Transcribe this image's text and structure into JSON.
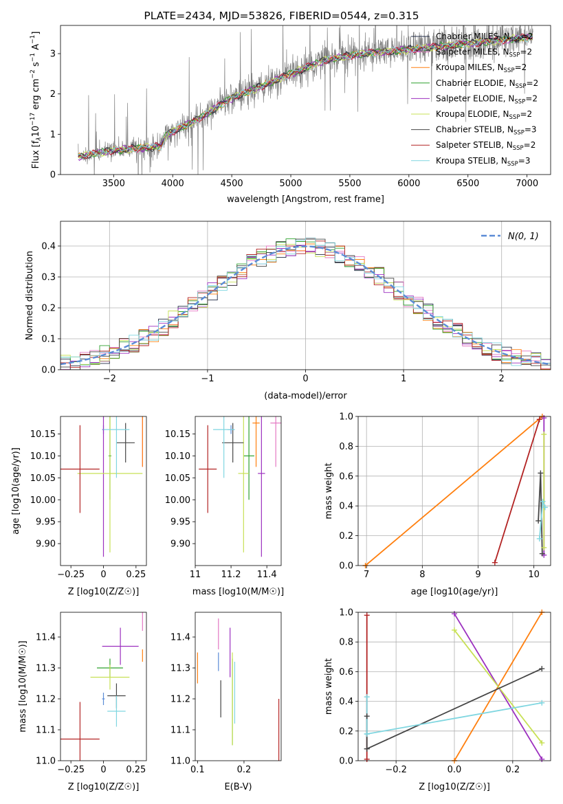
{
  "title": "PLATE=2434, MJD=53826, FIBERID=0544, z=0.315",
  "models": [
    {
      "name": "Chabrier MILES, N$_{SSP}$=2",
      "label": "Chabrier MILES, N",
      "sub": "SSP",
      "suffix": "=2",
      "color": "#1f2a44",
      "style": "#5577cc"
    },
    {
      "name": "Salpeter MILES",
      "label": "Salpeter MILES, N",
      "sub": "SSP",
      "suffix": "=2",
      "color": "#e377c2"
    },
    {
      "name": "Kroupa MILES",
      "label": "Kroupa MILES, N",
      "sub": "SSP",
      "suffix": "=2",
      "color": "#ff7f0e"
    },
    {
      "name": "Chabrier ELODIE",
      "label": "Chabrier ELODIE, N",
      "sub": "SSP",
      "suffix": "=2",
      "color": "#2ca02c"
    },
    {
      "name": "Salpeter ELODIE",
      "label": "Salpeter ELODIE, N",
      "sub": "SSP",
      "suffix": "=2",
      "color": "#9b2fbf"
    },
    {
      "name": "Kroupa ELODIE",
      "label": "Kroupa ELODIE, N",
      "sub": "SSP",
      "suffix": "=2",
      "color": "#c7e054"
    },
    {
      "name": "Chabrier STELIB",
      "label": "Chabrier STELIB, N",
      "sub": "SSP",
      "suffix": "=3",
      "color": "#444444"
    },
    {
      "name": "Salpeter STELIB",
      "label": "Salpeter STELIB, N",
      "sub": "SSP",
      "suffix": "=2",
      "color": "#b22222"
    },
    {
      "name": "Kroupa STELIB",
      "label": "Kroupa STELIB, N",
      "sub": "SSP",
      "suffix": "=3",
      "color": "#7fd6e0"
    }
  ],
  "chart_data": [
    {
      "type": "line",
      "title": "PLATE=2434, MJD=53826, FIBERID=0544, z=0.315",
      "xlabel": "wavelength [Angstrom, rest frame]",
      "ylabel_parts": [
        "Flux [f",
        "λ",
        "10",
        "−17",
        " erg cm",
        "−2",
        " s",
        "−1",
        " A",
        "−1",
        "]"
      ],
      "xlim": [
        3050,
        7200
      ],
      "ylim": [
        0,
        3.7
      ],
      "xticks": [
        3500,
        4000,
        4500,
        5000,
        5500,
        6000,
        6500,
        7000
      ],
      "yticks": [
        0,
        1,
        2,
        3
      ],
      "spectrum_range": [
        3200,
        7050
      ],
      "continuum_x": [
        3200,
        3500,
        3900,
        3950,
        4200,
        4500,
        4800,
        5000,
        5300,
        5600,
        6000,
        6500,
        7000
      ],
      "continuum_y": [
        0.45,
        0.6,
        0.7,
        1.0,
        1.35,
        1.9,
        2.25,
        2.5,
        2.85,
        3.0,
        3.1,
        3.25,
        3.4
      ],
      "legend_loc": "upper right",
      "grid": false
    },
    {
      "type": "line",
      "xlabel": "(data-model)/error",
      "ylabel": "Normed distribution",
      "xlim": [
        -2.5,
        2.5
      ],
      "ylim": [
        0,
        0.48
      ],
      "xticks": [
        -2,
        -1,
        0,
        1,
        2
      ],
      "yticks": [
        0.0,
        0.1,
        0.2,
        0.3,
        0.4
      ],
      "ytick_labels": [
        "0.0",
        "0.1",
        "0.2",
        "0.3",
        "0.4"
      ],
      "reference_label": "N(0, 1)",
      "reference_color": "#5b8bd6",
      "bin_width": 0.1,
      "legend_loc": "upper right",
      "grid": true
    },
    {
      "type": "scatter",
      "xlabel": "Z [log10(Z/Z☉)]",
      "ylabel": "age [log10(age/yr)]",
      "xlim": [
        -0.33,
        0.33
      ],
      "ylim": [
        9.85,
        10.19
      ],
      "xticks": [
        -0.25,
        0.0,
        0.25
      ],
      "yticks": [
        9.9,
        9.95,
        10.0,
        10.05,
        10.1,
        10.15
      ],
      "points": [
        {
          "model": "Chabrier MILES",
          "x": 0.0,
          "y": 10.16,
          "xerr": 0.01,
          "yerr": 0.01
        },
        {
          "model": "Salpeter MILES",
          "x": 0.3,
          "y": 10.175,
          "xerr": 0.0,
          "yerr": 0.1
        },
        {
          "model": "Kroupa MILES",
          "x": 0.3,
          "y": 10.175,
          "xerr": 0.0,
          "yerr": 0.1
        },
        {
          "model": "Chabrier ELODIE",
          "x": 0.05,
          "y": 10.1,
          "xerr": 0.01,
          "yerr": 0.1
        },
        {
          "model": "Salpeter ELODIE",
          "x": 0.0,
          "y": 10.06,
          "xerr": 0.0,
          "yerr": 0.19
        },
        {
          "model": "Kroupa ELODIE",
          "x": 0.05,
          "y": 10.06,
          "xerr": 0.25,
          "yerr": 0.18
        },
        {
          "model": "Chabrier STELIB",
          "x": 0.17,
          "y": 10.13,
          "xerr": 0.07,
          "yerr": 0.045
        },
        {
          "model": "Salpeter STELIB",
          "x": -0.18,
          "y": 10.07,
          "xerr": 0.15,
          "yerr": 0.1
        },
        {
          "model": "Kroupa STELIB",
          "x": 0.1,
          "y": 10.16,
          "xerr": 0.1,
          "yerr": 0.11
        }
      ]
    },
    {
      "type": "scatter",
      "xlabel": "mass [log10(M/M☉)]",
      "ylabel": "",
      "xlim": [
        11.0,
        11.48
      ],
      "ylim": [
        9.85,
        10.19
      ],
      "xticks": [
        11.0,
        11.2,
        11.4
      ],
      "yticks": [
        9.9,
        9.95,
        10.0,
        10.05,
        10.1,
        10.15
      ],
      "points": [
        {
          "model": "Chabrier MILES",
          "x": 11.2,
          "y": 10.16,
          "xerr": 0.02,
          "yerr": 0.01
        },
        {
          "model": "Salpeter MILES",
          "x": 11.45,
          "y": 10.175,
          "xerr": 0.03,
          "yerr": 0.1
        },
        {
          "model": "Kroupa MILES",
          "x": 11.34,
          "y": 10.175,
          "xerr": 0.02,
          "yerr": 0.1
        },
        {
          "model": "Chabrier ELODIE",
          "x": 11.3,
          "y": 10.1,
          "xerr": 0.03,
          "yerr": 0.1
        },
        {
          "model": "Salpeter ELODIE",
          "x": 11.37,
          "y": 10.06,
          "xerr": 0.02,
          "yerr": 0.19
        },
        {
          "model": "Kroupa ELODIE",
          "x": 11.27,
          "y": 10.06,
          "xerr": 0.03,
          "yerr": 0.18
        },
        {
          "model": "Chabrier STELIB",
          "x": 11.21,
          "y": 10.13,
          "xerr": 0.06,
          "yerr": 0.045
        },
        {
          "model": "Salpeter STELIB",
          "x": 11.07,
          "y": 10.07,
          "xerr": 0.05,
          "yerr": 0.1
        },
        {
          "model": "Kroupa STELIB",
          "x": 11.16,
          "y": 10.16,
          "xerr": 0.06,
          "yerr": 0.11
        }
      ]
    },
    {
      "type": "line",
      "xlabel": "age [log10(age/yr)]",
      "ylabel": "mass weight",
      "xlim": [
        6.85,
        10.3
      ],
      "ylim": [
        0,
        1.0
      ],
      "xticks": [
        7,
        8,
        9,
        10
      ],
      "yticks": [
        0.0,
        0.2,
        0.4,
        0.6,
        0.8,
        1.0
      ],
      "ytick_labels": [
        "0.0",
        "0.2",
        "0.4",
        "0.6",
        "0.8",
        "1.0"
      ],
      "grid": true,
      "series": [
        {
          "model": "Kroupa MILES",
          "x": [
            6.98,
            10.15
          ],
          "y": [
            0.0,
            1.0
          ]
        },
        {
          "model": "Salpeter STELIB",
          "x": [
            9.3,
            10.1
          ],
          "y": [
            0.02,
            0.98
          ]
        },
        {
          "model": "Salpeter ELODIE",
          "x": [
            10.18,
            10.18
          ],
          "y": [
            0.07,
            0.99
          ]
        },
        {
          "model": "Kroupa ELODIE",
          "x": [
            10.18,
            10.18
          ],
          "y": [
            0.12,
            0.88
          ]
        },
        {
          "model": "Chabrier STELIB",
          "x": [
            10.08,
            10.12,
            10.15
          ],
          "y": [
            0.3,
            0.62,
            0.08
          ]
        },
        {
          "model": "Kroupa STELIB",
          "x": [
            10.1,
            10.16,
            10.2
          ],
          "y": [
            0.18,
            0.43,
            0.39
          ]
        }
      ]
    },
    {
      "type": "scatter",
      "xlabel": "Z [log10(Z/Z☉)]",
      "ylabel": "mass [log10(M/M☉)]",
      "xlim": [
        -0.33,
        0.33
      ],
      "ylim": [
        11.0,
        11.48
      ],
      "xticks": [
        -0.25,
        0.0,
        0.25
      ],
      "yticks": [
        11.0,
        11.1,
        11.2,
        11.3,
        11.4
      ],
      "points": [
        {
          "model": "Chabrier MILES",
          "x": 0.0,
          "y": 11.2,
          "xerr": 0.01,
          "yerr": 0.02
        },
        {
          "model": "Salpeter MILES",
          "x": 0.3,
          "y": 11.45,
          "xerr": 0.0,
          "yerr": 0.03
        },
        {
          "model": "Kroupa MILES",
          "x": 0.3,
          "y": 11.34,
          "xerr": 0.0,
          "yerr": 0.02
        },
        {
          "model": "Chabrier ELODIE",
          "x": 0.05,
          "y": 11.3,
          "xerr": 0.1,
          "yerr": 0.03
        },
        {
          "model": "Salpeter ELODIE",
          "x": 0.13,
          "y": 11.37,
          "xerr": 0.14,
          "yerr": 0.06
        },
        {
          "model": "Kroupa ELODIE",
          "x": 0.05,
          "y": 11.27,
          "xerr": 0.15,
          "yerr": 0.04
        },
        {
          "model": "Chabrier STELIB",
          "x": 0.1,
          "y": 11.21,
          "xerr": 0.07,
          "yerr": 0.04
        },
        {
          "model": "Salpeter STELIB",
          "x": -0.18,
          "y": 11.07,
          "xerr": 0.15,
          "yerr": 0.12
        },
        {
          "model": "Kroupa STELIB",
          "x": 0.1,
          "y": 11.16,
          "xerr": 0.07,
          "yerr": 0.05
        }
      ]
    },
    {
      "type": "scatter",
      "xlabel": "E(B-V)",
      "ylabel": "",
      "xlim": [
        0.095,
        0.28
      ],
      "ylim": [
        11.0,
        11.48
      ],
      "xticks": [
        0.1,
        0.2
      ],
      "yticks": [
        11.0,
        11.1,
        11.2,
        11.3,
        11.4
      ],
      "points": [
        {
          "model": "Chabrier MILES",
          "x": 0.145,
          "y": 11.32,
          "yerr": 0.03
        },
        {
          "model": "Salpeter MILES",
          "x": 0.145,
          "y": 11.41,
          "yerr": 0.05
        },
        {
          "model": "Kroupa MILES",
          "x": 0.1,
          "y": 11.3,
          "yerr": 0.05
        },
        {
          "model": "Chabrier ELODIE",
          "x": 0.175,
          "y": 11.19,
          "yerr": 0.14
        },
        {
          "model": "Salpeter ELODIE",
          "x": 0.17,
          "y": 11.35,
          "yerr": 0.08
        },
        {
          "model": "Kroupa ELODIE",
          "x": 0.175,
          "y": 11.2,
          "yerr": 0.15
        },
        {
          "model": "Chabrier STELIB",
          "x": 0.15,
          "y": 11.2,
          "yerr": 0.06
        },
        {
          "model": "Salpeter STELIB",
          "x": 0.275,
          "y": 11.1,
          "yerr": 0.1
        },
        {
          "model": "Kroupa STELIB",
          "x": 0.18,
          "y": 11.22,
          "yerr": 0.1
        }
      ]
    },
    {
      "type": "line",
      "xlabel": "Z [log10(Z/Z☉)]",
      "ylabel": "mass weight",
      "xlim": [
        -0.33,
        0.33
      ],
      "ylim": [
        0,
        1.0
      ],
      "xticks": [
        -0.2,
        0.0,
        0.2
      ],
      "xtick_labels": [
        "−0.2",
        "0.0",
        "0.2"
      ],
      "yticks": [
        0.0,
        0.2,
        0.4,
        0.6,
        0.8,
        1.0
      ],
      "ytick_labels": [
        "0.0",
        "0.2",
        "0.4",
        "0.6",
        "0.8",
        "1.0"
      ],
      "grid": true,
      "series": [
        {
          "model": "Salpeter STELIB",
          "x": [
            -0.3,
            -0.3
          ],
          "y": [
            0.01,
            0.98
          ]
        },
        {
          "model": "Kroupa MILES",
          "x": [
            0.0,
            0.3
          ],
          "y": [
            0.0,
            1.0
          ]
        },
        {
          "model": "Salpeter ELODIE",
          "x": [
            0.0,
            0.3
          ],
          "y": [
            0.99,
            0.01
          ]
        },
        {
          "model": "Kroupa ELODIE",
          "x": [
            0.0,
            0.3
          ],
          "y": [
            0.88,
            0.12
          ]
        },
        {
          "model": "Chabrier STELIB",
          "x": [
            -0.3,
            0.3
          ],
          "y": [
            0.08,
            0.62
          ]
        },
        {
          "model": "Kroupa STELIB",
          "x": [
            -0.3,
            0.3
          ],
          "y": [
            0.18,
            0.39
          ]
        },
        {
          "model": "Chabrier STELIB",
          "x": [
            -0.3,
            -0.3
          ],
          "y": [
            0.08,
            0.3
          ]
        },
        {
          "model": "Kroupa STELIB",
          "x": [
            -0.3,
            -0.3
          ],
          "y": [
            0.18,
            0.43
          ]
        }
      ]
    }
  ]
}
